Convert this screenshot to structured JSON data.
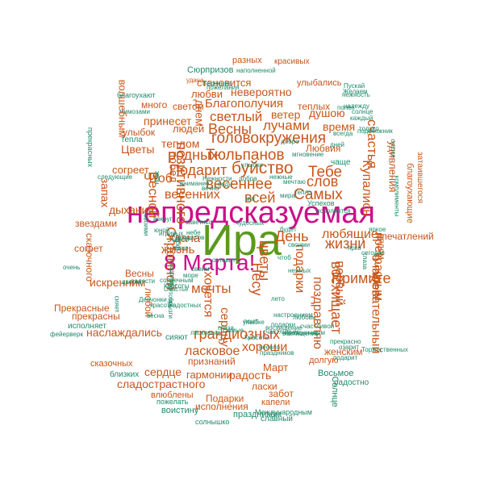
{
  "cloud": {
    "main": {
      "name": "Ира",
      "headline": "непредсказуемая",
      "holiday": "8 Марта!"
    },
    "words": [
      "Сюрпризов",
      "разных",
      "красивых",
      "удача",
      "становится",
      "улыбались",
      "благоухают",
      "любви",
      "невероятно",
      "теплых",
      "много",
      "светом",
      "Благополучия",
      "лучами",
      "ветер",
      "душою",
      "мимозами",
      "днем",
      "принесет",
      "светлый",
      "время",
      "волшебным",
      "улыбок",
      "людей",
      "Весны",
      "головокружения",
      "тепла",
      "теплом",
      "Любвия",
      "Цветы",
      "родных",
      "Тюльпанов",
      "прекрасных",
      "согреет",
      "Подарит",
      "буйство",
      "Тебе",
      "Чтоб",
      "весеннее",
      "слов",
      "удивления",
      "весенних",
      "всей",
      "Самых",
      "Купались",
      "счастья",
      "запах",
      "Весной",
      "дыхания",
      "позитивного",
      "звездами",
      "побед",
      "сказочного",
      "Удача",
      "День",
      "любящие",
      "жизни",
      "согрет",
      "жизнь",
      "Примите",
      "первый",
      "поздравляю",
      "искренним",
      "Огромной",
      "подарки",
      "мечты",
      "прекрасным",
      "Несу",
      "цветы",
      "Весны",
      "любой",
      "хочется",
      "сердцу",
      "полета",
      "рядом",
      "впечатлений",
      "благоухающие",
      "затаившегося",
      "восхищает",
      "очаровательный",
      "грандиозных",
      "сияют",
      "Прекрасные",
      "прекрасны",
      "исполняет",
      "наслаждались",
      "ласковое",
      "признаний",
      "хороши",
      "женским",
      "долгую",
      "сказочных",
      "сердце",
      "гармонии",
      "радость",
      "Март",
      "близких",
      "сладострастного",
      "Восьмое",
      "ласки",
      "забот",
      "Торжественных",
      "радостно",
      "Подарки",
      "влюблены",
      "капели",
      "исполнения",
      "Солнце",
      "пожелать",
      "праздником",
      "Международным",
      "воистину",
      "славный",
      "солнышко",
      "фейерверк",
      "Пускай",
      "Желаем",
      "нежность",
      "полет",
      "солнце",
      "надежду",
      "только",
      "сказке",
      "яркое",
      "сегодня",
      "душе",
      "Самые",
      "Света",
      "мечтаю",
      "ярко",
      "звон",
      "будет",
      "Успехов",
      "небе",
      "вокруг",
      "чтоб",
      "нежных",
      "глаза",
      "озарит",
      "подарит",
      "прекрасно",
      "красоты",
      "Весенние",
      "пожелания",
      "Нежности",
      "наполненной",
      "своими",
      "чудесных",
      "заветных",
      "настроением",
      "весело",
      "игривых",
      "любовь",
      "ласковым",
      "счастливой",
      "улыбке",
      "весна",
      "оставит",
      "добра",
      "вечно",
      "сияет",
      "Счастье",
      "Красоты",
      "брызги",
      "мгновение",
      "ведь",
      "внимание",
      "ароматов",
      "искр",
      "мира",
      "поют",
      "юной",
      "тепло",
      "нежные",
      "праздник",
      "подснежник",
      "комплименты",
      "каждый",
      "следующие",
      "букетом",
      "Девчонки",
      "дней",
      "своим",
      "лето",
      "очень",
      "цветах",
      "Радостных",
      "миг",
      "праздников",
      "всегда",
      "исполнятся",
      "радости",
      "восхищение",
      "счастливым",
      "солнечным",
      "добро",
      "чаще",
      "Красоты",
      "море",
      "своими",
      "праздничным",
      "восхищение",
      "подарки",
      "глаза",
      "улыбки",
      "желания",
      "Семья",
      "радость"
    ]
  }
}
